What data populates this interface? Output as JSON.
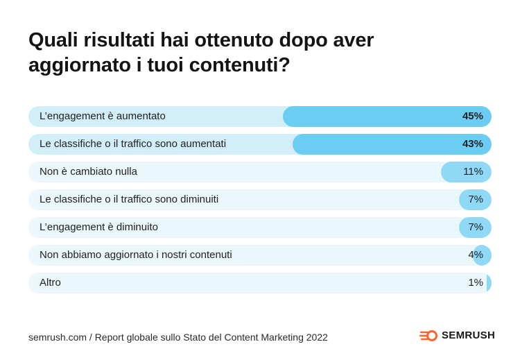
{
  "title": "Quali risultati hai ottenuto dopo aver aggiornato i tuoi contenuti?",
  "footer": {
    "source": "semrush.com / Report globale sullo Stato del Content Marketing 2022",
    "logo_text": "SEMRUSH"
  },
  "colors": {
    "track": "#eaf7fd",
    "track_highlight": "#d2eef9",
    "bar": "#8fd9f6",
    "bar_highlight": "#6ccdf2",
    "logo_orange": "#ff642d"
  },
  "chart_data": {
    "type": "bar",
    "orientation": "horizontal",
    "unit": "%",
    "categories": [
      "L’engagement è aumentato",
      "Le classifiche o il traffico sono aumentati",
      "Non è cambiato nulla",
      "Le classifiche o il traffico sono diminuiti",
      "L’engagement è diminuito",
      "Non abbiamo aggiornato i nostri contenuti",
      "Altro"
    ],
    "values": [
      45,
      43,
      11,
      7,
      7,
      4,
      1
    ],
    "value_labels": [
      "45%",
      "43%",
      "11%",
      "7%",
      "7%",
      "4%",
      "1%"
    ],
    "highlighted": [
      0,
      1
    ],
    "xlim": [
      0,
      100
    ],
    "grid": false,
    "legend": "none"
  }
}
